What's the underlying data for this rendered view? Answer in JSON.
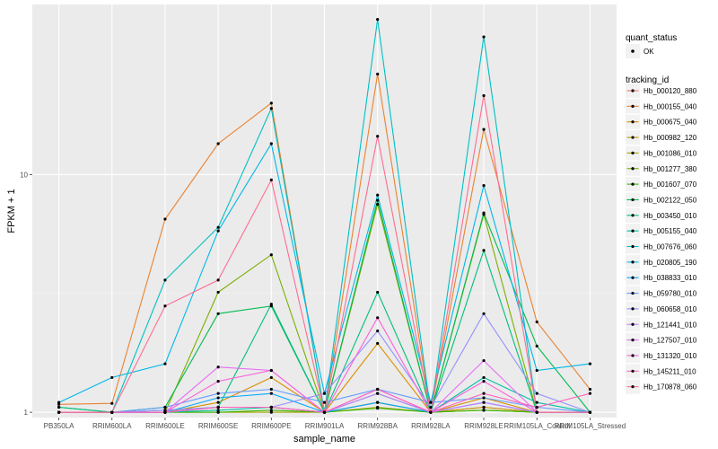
{
  "chart_data": {
    "type": "line",
    "xlabel": "sample_name",
    "ylabel": "FPKM + 1",
    "yscale": "log10",
    "ylim": [
      0.95,
      52
    ],
    "y_ticks": [
      1,
      10
    ],
    "y_tick_labels": [
      "1",
      "10"
    ],
    "grid": true,
    "legend_placement": "right",
    "categories": [
      "PB350LA",
      "RRIM600LA",
      "RRIM600LE",
      "RRIM600SE",
      "RRIM600PE",
      "RRIM901LA",
      "RRIM928BA",
      "RRIM928LA",
      "RRIM928LE",
      "RRIM105LA_Control",
      "RRIM105LA_Stressed"
    ],
    "category_labels": [
      "PB350LA",
      "RRIM600LA",
      "RRIM600LE",
      "RRIM600SE",
      "RRIM600PE",
      "RRIM901LA",
      "RRIM928BA",
      "RRIM928LA",
      "RRIM928LE",
      "RRIM105LA_Control",
      "RRIM105LA_Stressed"
    ],
    "shape_legend": {
      "title": "quant_status",
      "items": [
        "OK"
      ]
    },
    "color_legend_title": "tracking_id",
    "series": [
      {
        "name": "Hb_000120_880",
        "color": "#F8766D",
        "values": [
          1.0,
          1.0,
          1.0,
          1.05,
          1.05,
          1.0,
          1.1,
          1.0,
          1.05,
          1.0,
          1.0
        ]
      },
      {
        "name": "Hb_000155_040",
        "color": "#EA8331",
        "values": [
          1.08,
          1.09,
          6.5,
          13.5,
          20.0,
          1.0,
          26.5,
          1.0,
          15.5,
          2.4,
          1.25
        ]
      },
      {
        "name": "Hb_000675_040",
        "color": "#D89000",
        "values": [
          1.0,
          1.0,
          1.0,
          1.1,
          1.4,
          1.0,
          1.95,
          1.0,
          1.15,
          1.0,
          1.0
        ]
      },
      {
        "name": "Hb_000982_120",
        "color": "#C09B00",
        "values": [
          1.0,
          1.0,
          1.0,
          1.05,
          1.05,
          1.0,
          1.1,
          1.0,
          1.05,
          1.0,
          1.0
        ]
      },
      {
        "name": "Hb_001086_010",
        "color": "#A3A500",
        "values": [
          1.0,
          1.0,
          1.0,
          1.0,
          1.0,
          1.0,
          1.05,
          1.0,
          1.02,
          1.0,
          1.0
        ]
      },
      {
        "name": "Hb_001277_380",
        "color": "#7CAE00",
        "values": [
          1.0,
          1.0,
          1.0,
          3.2,
          4.6,
          1.0,
          7.5,
          1.0,
          6.8,
          1.0,
          1.0
        ]
      },
      {
        "name": "Hb_001607_070",
        "color": "#39B600",
        "values": [
          1.0,
          1.0,
          1.0,
          1.0,
          1.02,
          1.0,
          1.04,
          1.0,
          1.02,
          1.0,
          1.0
        ]
      },
      {
        "name": "Hb_002122_050",
        "color": "#00BB4E",
        "values": [
          1.05,
          1.0,
          1.05,
          2.6,
          2.8,
          1.0,
          7.8,
          1.0,
          6.9,
          1.9,
          1.0
        ]
      },
      {
        "name": "Hb_003450_010",
        "color": "#00BF7D",
        "values": [
          1.05,
          1.0,
          1.02,
          1.05,
          2.85,
          1.0,
          3.2,
          1.0,
          4.8,
          1.0,
          1.0
        ]
      },
      {
        "name": "Hb_005155_040",
        "color": "#00C1A3",
        "values": [
          1.0,
          1.0,
          1.0,
          1.02,
          1.05,
          1.0,
          1.2,
          1.0,
          1.4,
          1.1,
          1.0
        ]
      },
      {
        "name": "Hb_007676_060",
        "color": "#00BFC4",
        "values": [
          1.0,
          1.0,
          3.6,
          6.0,
          19.0,
          1.0,
          45.0,
          1.0,
          38.0,
          1.0,
          1.0
        ]
      },
      {
        "name": "Hb_020805_190",
        "color": "#00B8E7",
        "values": [
          1.1,
          1.4,
          1.6,
          5.8,
          13.5,
          1.2,
          8.2,
          1.1,
          9.0,
          1.5,
          1.6
        ]
      },
      {
        "name": "Hb_038833_010",
        "color": "#00A9FF",
        "values": [
          1.0,
          1.0,
          1.0,
          1.15,
          1.2,
          1.0,
          1.1,
          1.0,
          1.1,
          1.0,
          1.0
        ]
      },
      {
        "name": "Hb_059780_010",
        "color": "#619CFF",
        "values": [
          1.0,
          1.0,
          1.05,
          1.2,
          1.25,
          1.1,
          1.25,
          1.1,
          1.15,
          1.05,
          1.0
        ]
      },
      {
        "name": "Hb_060658_010",
        "color": "#9590FF",
        "values": [
          1.0,
          1.0,
          1.02,
          1.05,
          1.05,
          1.2,
          2.2,
          1.05,
          2.6,
          1.2,
          1.0
        ]
      },
      {
        "name": "Hb_121441_010",
        "color": "#C77CFF",
        "values": [
          1.0,
          1.0,
          1.0,
          1.05,
          1.05,
          1.0,
          1.2,
          1.0,
          1.1,
          1.0,
          1.0
        ]
      },
      {
        "name": "Hb_127507_010",
        "color": "#E76BF3",
        "values": [
          1.0,
          1.0,
          1.0,
          1.55,
          1.5,
          1.0,
          1.25,
          1.0,
          1.65,
          1.0,
          1.0
        ]
      },
      {
        "name": "Hb_131320_010",
        "color": "#FA62DB",
        "values": [
          1.0,
          1.0,
          1.0,
          1.35,
          1.5,
          1.0,
          2.5,
          1.0,
          1.35,
          1.0,
          1.0
        ]
      },
      {
        "name": "Hb_145211_010",
        "color": "#FF62BC",
        "values": [
          1.0,
          1.0,
          1.0,
          1.05,
          1.05,
          1.0,
          1.25,
          1.0,
          1.2,
          1.05,
          1.2
        ]
      },
      {
        "name": "Hb_170878_060",
        "color": "#FF6C91",
        "values": [
          1.0,
          1.0,
          2.8,
          3.6,
          9.5,
          1.0,
          14.5,
          1.0,
          21.5,
          1.0,
          1.0
        ]
      }
    ]
  }
}
